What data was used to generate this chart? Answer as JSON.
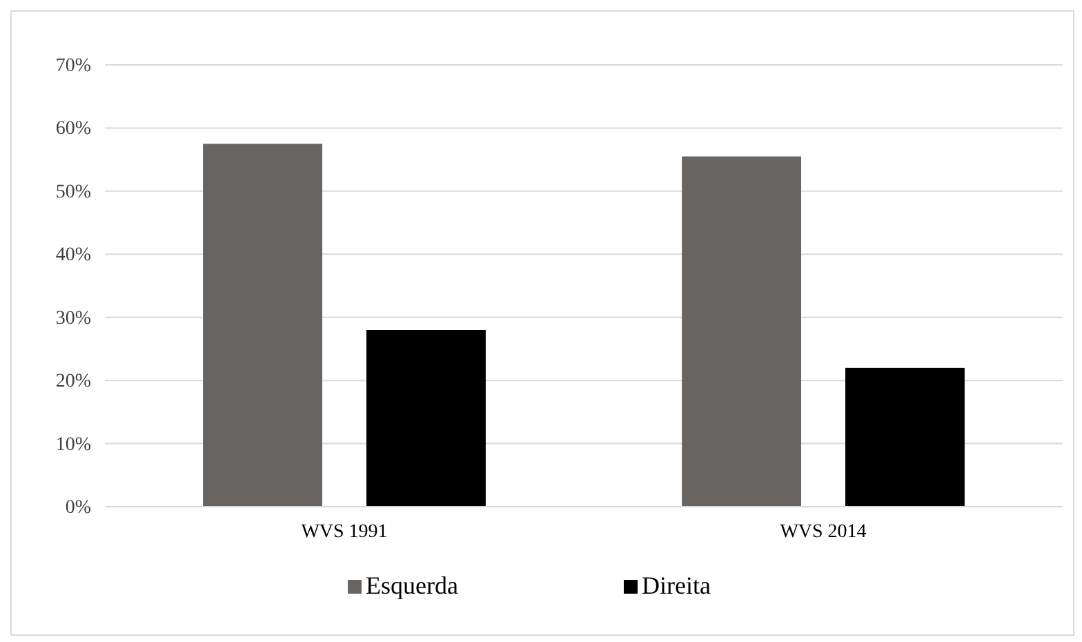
{
  "chart_data": {
    "type": "bar",
    "categories": [
      "WVS 1991",
      "WVS 2014"
    ],
    "series": [
      {
        "name": "Esquerda",
        "color": "#686462",
        "values": [
          57.5,
          55.5
        ]
      },
      {
        "name": "Direita",
        "color": "#000000",
        "values": [
          28,
          22
        ]
      }
    ],
    "ylim": [
      0,
      70
    ],
    "yticks": [
      {
        "value": 0,
        "label": "0%"
      },
      {
        "value": 10,
        "label": "10%"
      },
      {
        "value": 20,
        "label": "20%"
      },
      {
        "value": 30,
        "label": "30%"
      },
      {
        "value": 40,
        "label": "40%"
      },
      {
        "value": 50,
        "label": "50%"
      },
      {
        "value": 60,
        "label": "60%"
      },
      {
        "value": 70,
        "label": "70%"
      }
    ],
    "grid": "y",
    "legend": "bottom"
  }
}
